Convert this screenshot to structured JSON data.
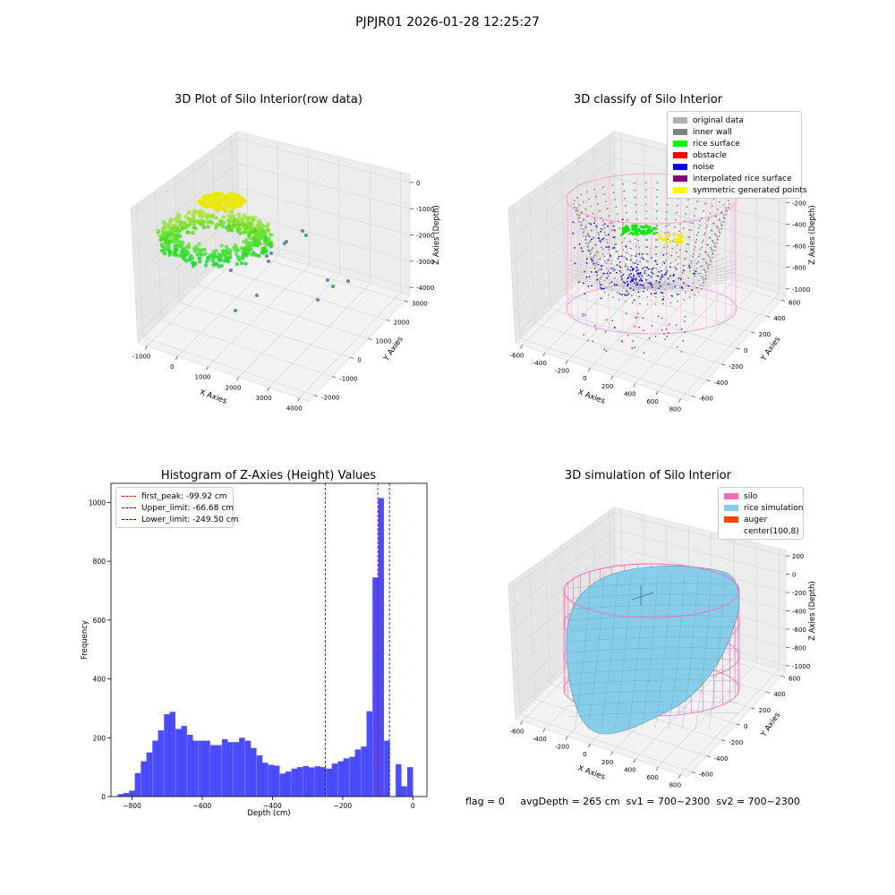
{
  "figure": {
    "suptitle": "PJPJR01 2026-01-28 12:25:27",
    "status": {
      "flag": "flag = 0",
      "avg_depth": "avgDepth = 265 cm",
      "sv1": "sv1 = 700~2300",
      "sv2": "sv2 = 700~2300"
    }
  },
  "panels": {
    "raw": {
      "title": "3D Plot of Silo Interior(row data)",
      "xlabel": "X Axies",
      "ylabel": "Y Axies",
      "zlabel": "Z Axies (Depth)",
      "xticks": [
        "-1000",
        "0",
        "1000",
        "2000",
        "3000",
        "4000"
      ],
      "yticks": [
        "-2000",
        "-1000",
        "0",
        "1000",
        "2000",
        "3000"
      ],
      "zticks": [
        "0",
        "-1000",
        "-2000",
        "-3000",
        "-4000"
      ]
    },
    "classify": {
      "title": "3D classify of Silo Interior",
      "xlabel": "X Axies",
      "ylabel": "Y Axies",
      "zlabel": "Z Axies (Depth)",
      "xticks": [
        "-600",
        "-400",
        "-200",
        "0",
        "200",
        "400",
        "600",
        "800"
      ],
      "yticks": [
        "-600",
        "-400",
        "-200",
        "0",
        "200",
        "400",
        "600"
      ],
      "zticks": [
        "0",
        "-200",
        "-400",
        "-600",
        "-800",
        "-1000"
      ],
      "legend": [
        {
          "label": "original data",
          "color": "#b0b0b0"
        },
        {
          "label": "inner wall",
          "color": "#808080"
        },
        {
          "label": "rice surface",
          "color": "#00ff00"
        },
        {
          "label": "obstacle",
          "color": "#ff0000"
        },
        {
          "label": "noise",
          "color": "#0000ff"
        },
        {
          "label": "interpolated rice surface",
          "color": "#800080"
        },
        {
          "label": "symmetric generated points",
          "color": "#ffff00"
        }
      ]
    },
    "simulation": {
      "title": "3D simulation of Silo Interior",
      "xlabel": "X Axies",
      "ylabel": "Y Axies",
      "zlabel": "Z Axies (Depth)",
      "xticks": [
        "-600",
        "-400",
        "-200",
        "0",
        "200",
        "400",
        "600",
        "800"
      ],
      "yticks": [
        "-600",
        "-400",
        "-200",
        "0",
        "200",
        "400",
        "600"
      ],
      "zticks": [
        "200",
        "0",
        "-200",
        "-400",
        "-600",
        "-800",
        "-1000"
      ],
      "legend": [
        {
          "label": "silo",
          "color": "#ff69b4"
        },
        {
          "label": "rice simulation",
          "color": "#87ceeb"
        },
        {
          "label": "auger",
          "color": "#ff4500"
        },
        {
          "label": "center(100,8)",
          "color": "#ffffff"
        }
      ]
    }
  },
  "chart_data": [
    {
      "type": "bar",
      "title": "Histogram of Z-Axies (Height) Values",
      "xlabel": "Depth (cm)",
      "ylabel": "Frequency",
      "xlim": [
        -860,
        40
      ],
      "ylim": [
        0,
        1065
      ],
      "xticks": [
        -800,
        -600,
        -400,
        -200,
        0
      ],
      "yticks": [
        0,
        200,
        400,
        600,
        800,
        1000
      ],
      "bin_width": 16.5,
      "bins_start": [
        -841,
        -825,
        -808,
        -792,
        -775,
        -759,
        -742,
        -726,
        -709,
        -693,
        -676,
        -660,
        -643,
        -627,
        -610,
        -594,
        -577,
        -561,
        -544,
        -528,
        -511,
        -495,
        -478,
        -462,
        -445,
        -429,
        -412,
        -396,
        -379,
        -363,
        -346,
        -330,
        -313,
        -297,
        -280,
        -264,
        -247,
        -231,
        -214,
        -198,
        -181,
        -165,
        -148,
        -132,
        -115,
        -99,
        -82,
        -66,
        -49,
        -33,
        -16
      ],
      "values": [
        8,
        12,
        20,
        80,
        120,
        150,
        190,
        225,
        280,
        288,
        230,
        240,
        210,
        190,
        190,
        190,
        175,
        175,
        195,
        185,
        185,
        200,
        190,
        165,
        140,
        115,
        108,
        105,
        78,
        85,
        95,
        100,
        104,
        99,
        103,
        100,
        95,
        112,
        120,
        130,
        135,
        160,
        170,
        290,
        745,
        1015,
        190,
        0,
        110,
        35,
        100
      ],
      "color": "#0000ff",
      "vlines": [
        {
          "name": "first_peak: -99.92 cm",
          "x": -99.92,
          "color": "#ff0000"
        },
        {
          "name": "Upper_limit: -66.68 cm",
          "x": -66.68,
          "color": "#0000cc"
        },
        {
          "name": "Lower_limit: -249.50 cm",
          "x": -249.5,
          "color": "#0000cc"
        }
      ],
      "legend_position": "upper left"
    }
  ]
}
